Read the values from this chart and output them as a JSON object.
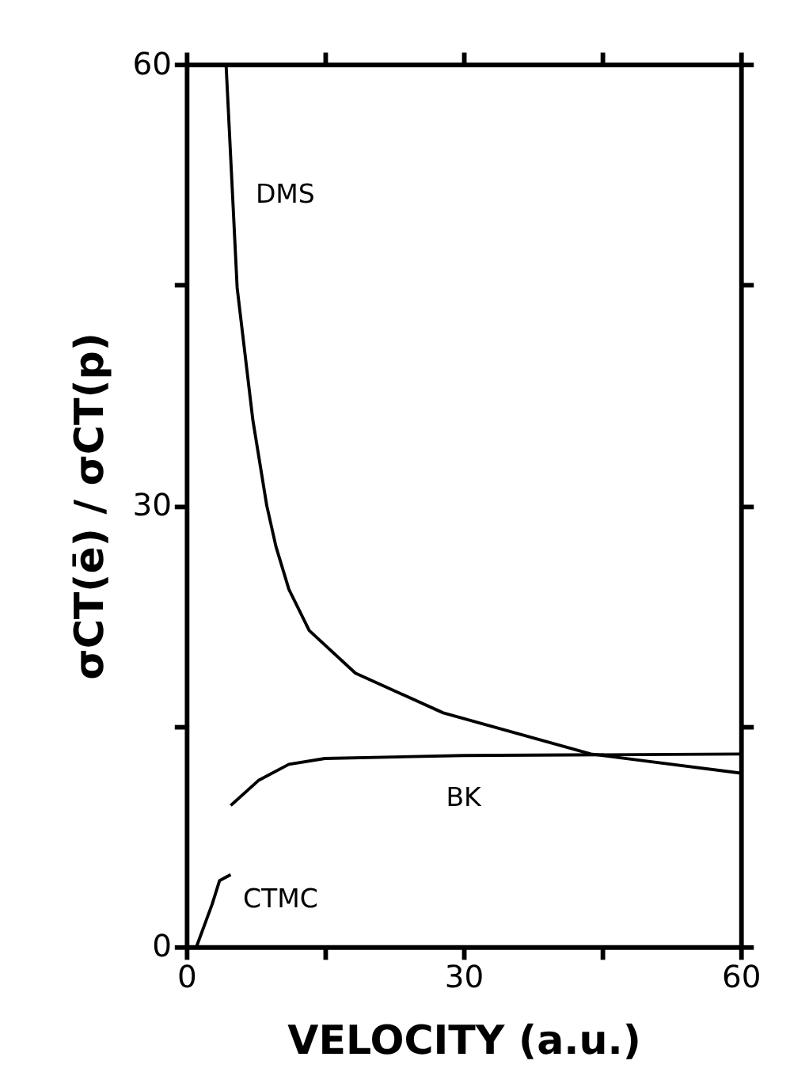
{
  "chart_data": {
    "type": "line",
    "xlabel": "VELOCITY (a.u.)",
    "ylabel": "σCT(ē) / σCT(p)",
    "xlim": [
      0,
      60
    ],
    "ylim": [
      0,
      60
    ],
    "xticks": [
      0,
      {
        "value": 15,
        "label": null
      },
      30,
      {
        "value": 45,
        "label": null
      },
      60
    ],
    "yticks": [
      0,
      {
        "value": 15,
        "label": null
      },
      30,
      {
        "value": 45,
        "label": null
      },
      60
    ],
    "grid": false,
    "legend": false,
    "marker": "none",
    "line_style": "solid",
    "series": [
      {
        "name": "DMS",
        "color": "#000000",
        "x": [
          4.3,
          5.5,
          7.2,
          8.7,
          9.7,
          11.1,
          13.3,
          18.3,
          27.8,
          43.8,
          60
        ],
        "values": [
          60,
          44.8,
          35.8,
          30,
          27.2,
          24.3,
          21.5,
          18.6,
          15.9,
          13.1,
          11.8
        ]
      },
      {
        "name": "BK",
        "color": "#000000",
        "x": [
          4.8,
          7.8,
          11.1,
          15,
          30,
          60
        ],
        "values": [
          9.6,
          11.3,
          12.4,
          12.8,
          13.0,
          13.1
        ]
      },
      {
        "name": "CTMC",
        "color": "#000000",
        "x": [
          1.1,
          2.8,
          3.6,
          4.8
        ],
        "values": [
          0,
          2.9,
          4.5,
          4.9
        ]
      }
    ]
  }
}
